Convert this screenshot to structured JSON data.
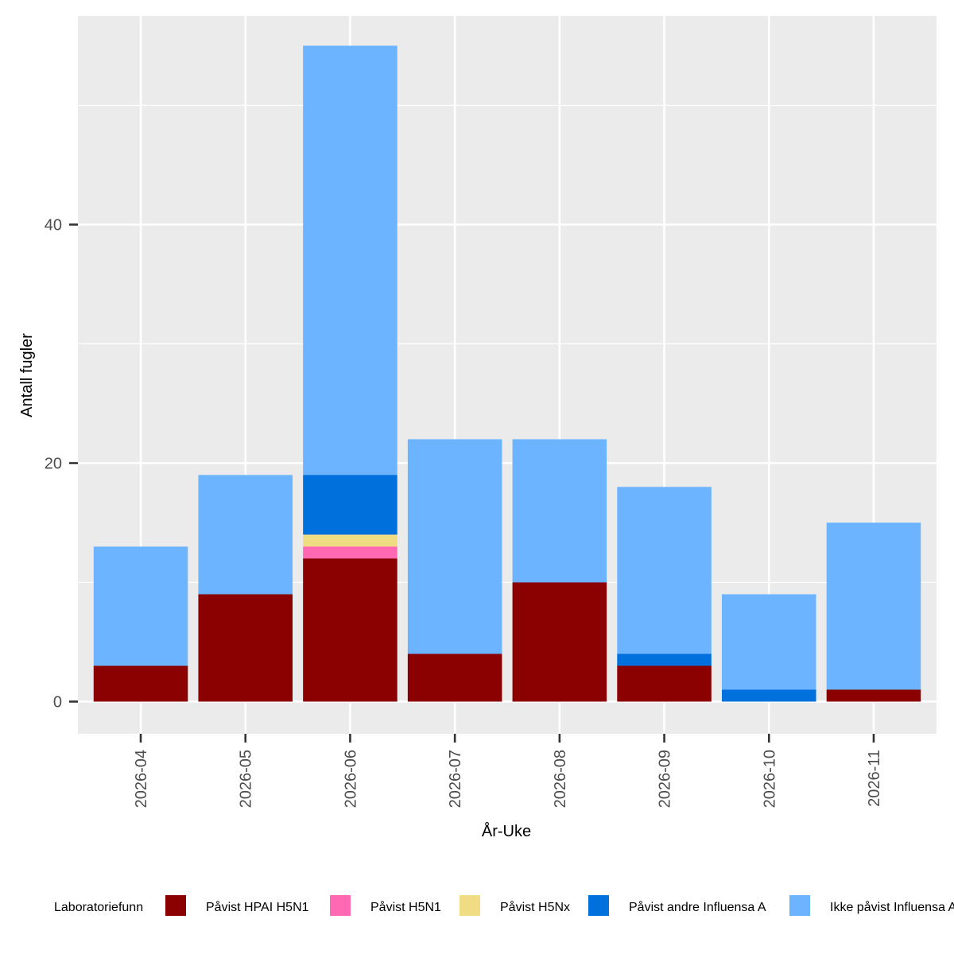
{
  "chart_data": {
    "type": "bar",
    "stacked": true,
    "xlabel": "År-Uke",
    "ylabel": "Antall fugler",
    "ylim": [
      -2.7,
      57.5
    ],
    "y_major_ticks": [
      0,
      20,
      40
    ],
    "y_minor_gridlines": [
      10,
      30,
      50
    ],
    "grid": true,
    "legend": {
      "title": "Laboratoriefunn",
      "position": "bottom"
    },
    "categories": [
      "2026-04",
      "2026-05",
      "2026-06",
      "2026-07",
      "2026-08",
      "2026-09",
      "2026-10",
      "2026-11"
    ],
    "series": [
      {
        "name": "Påvist HPAI H5N1",
        "color": "#8B0000",
        "values": [
          3,
          9,
          12,
          4,
          10,
          3,
          0,
          1
        ]
      },
      {
        "name": "Påvist H5N1",
        "color": "#FF69B4",
        "values": [
          0,
          0,
          1,
          0,
          0,
          0,
          0,
          0
        ]
      },
      {
        "name": "Påvist H5Nx",
        "color": "#F0DC82",
        "values": [
          0,
          0,
          1,
          0,
          0,
          0,
          0,
          0
        ]
      },
      {
        "name": "Påvist andre Influensa A",
        "color": "#0070DD",
        "values": [
          0,
          0,
          5,
          0,
          0,
          1,
          1,
          0
        ]
      },
      {
        "name": "Ikke påvist Influensa A",
        "color": "#6CB4FF",
        "values": [
          10,
          10,
          36,
          18,
          12,
          14,
          8,
          14
        ]
      }
    ]
  }
}
